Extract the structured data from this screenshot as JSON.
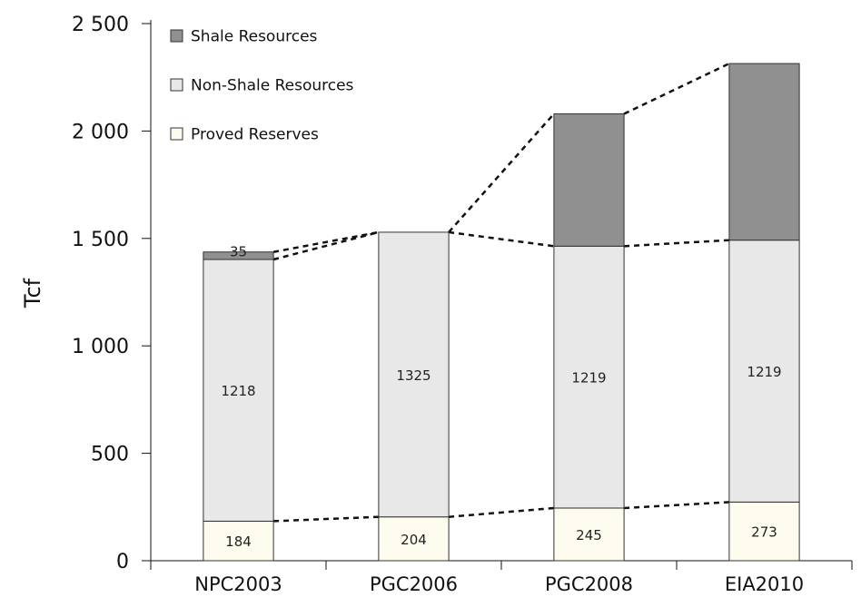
{
  "chart_data": {
    "type": "bar",
    "stacked": true,
    "title": "",
    "xlabel": "",
    "ylabel": "Tcf",
    "ylim": [
      0,
      2500
    ],
    "yticks": [
      0,
      500,
      1000,
      1500,
      2000,
      2500
    ],
    "ytick_labels": [
      "0",
      "500",
      "1 000",
      "1 500",
      "2 000",
      "2 500"
    ],
    "categories": [
      "NPC2003",
      "PGC2006",
      "PGC2008",
      "EIA2010"
    ],
    "series": [
      {
        "name": "Proved Reserves",
        "values": [
          184,
          204,
          245,
          273
        ],
        "labels": [
          "184",
          "204",
          "245",
          "273"
        ],
        "color": "#fdfcee"
      },
      {
        "name": "Non-Shale Resources",
        "values": [
          1218,
          1325,
          1219,
          1219
        ],
        "labels": [
          "1218",
          "1325",
          "1219",
          "1219"
        ],
        "color": "#e8e8e8"
      },
      {
        "name": "Shale Resources",
        "values": [
          35,
          0,
          616,
          822
        ],
        "labels": [
          "35",
          "",
          "",
          ""
        ],
        "color": "#909090"
      }
    ],
    "legend": {
      "position": "top-left",
      "order": [
        "Shale Resources",
        "Non-Shale Resources",
        "Proved Reserves"
      ]
    },
    "grid": false,
    "connector_lines": "dashed"
  }
}
